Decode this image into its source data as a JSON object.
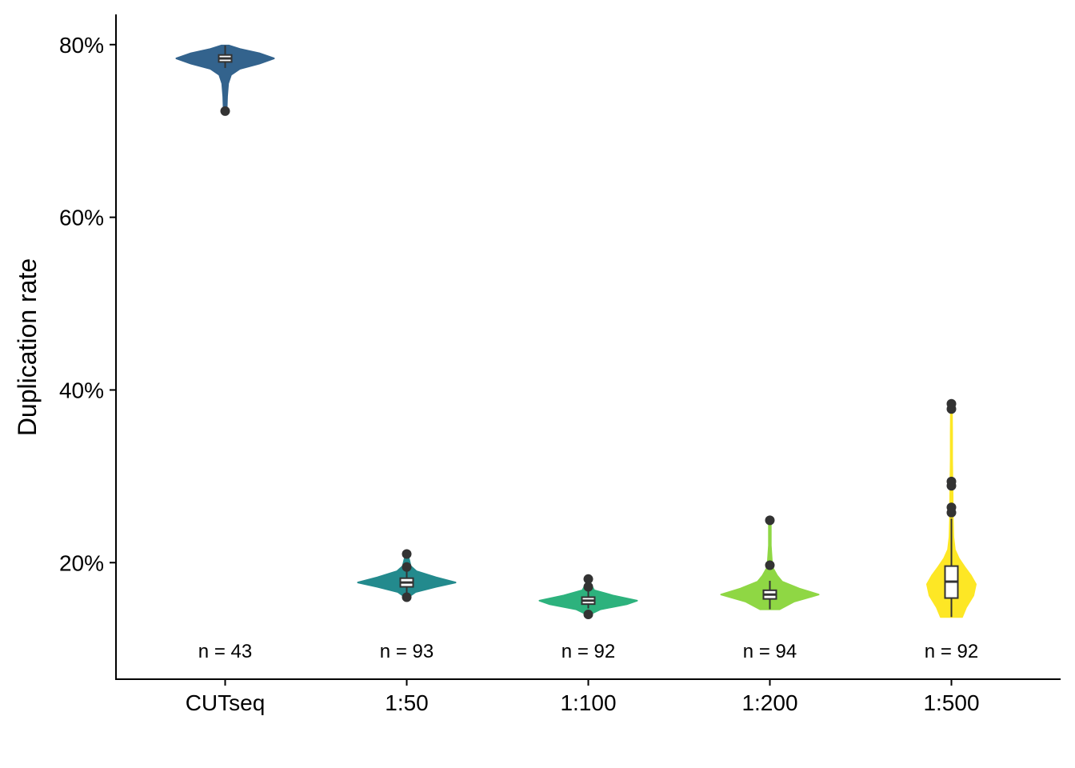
{
  "chart_data": {
    "type": "violin",
    "ylabel": "Duplication rate",
    "xlabel": "",
    "ylim": [
      6.5,
      83.5
    ],
    "y_ticks": [
      20,
      40,
      60,
      80
    ],
    "y_tick_labels": [
      "20%",
      "40%",
      "60%",
      "80%"
    ],
    "grid": false,
    "legend": "none",
    "groups": [
      {
        "label": "CUTseq",
        "n_label": "n = 43",
        "color": "#33638d",
        "box": {
          "q1": 78.0,
          "median": 78.4,
          "q3": 78.8,
          "whisker_low": 77.3,
          "whisker_high": 79.9
        },
        "outliers": [
          72.3
        ],
        "density": [
          [
            72.3,
            0.03
          ],
          [
            74.0,
            0.04
          ],
          [
            75.5,
            0.06
          ],
          [
            76.5,
            0.12
          ],
          [
            77.2,
            0.3
          ],
          [
            77.8,
            0.7
          ],
          [
            78.4,
            1.0
          ],
          [
            79.0,
            0.7
          ],
          [
            79.5,
            0.3
          ],
          [
            79.9,
            0.08
          ]
        ]
      },
      {
        "label": "1:50",
        "n_label": "n = 93",
        "color": "#238a8d",
        "box": {
          "q1": 17.2,
          "median": 17.7,
          "q3": 18.2,
          "whisker_low": 16.4,
          "whisker_high": 19.3
        },
        "outliers": [
          16.0,
          19.5,
          21.0
        ],
        "density": [
          [
            16.0,
            0.03
          ],
          [
            16.6,
            0.18
          ],
          [
            17.2,
            0.6
          ],
          [
            17.7,
            1.0
          ],
          [
            18.3,
            0.6
          ],
          [
            19.0,
            0.2
          ],
          [
            19.6,
            0.08
          ],
          [
            20.3,
            0.05
          ],
          [
            21.0,
            0.02
          ]
        ]
      },
      {
        "label": "1:100",
        "n_label": "n = 92",
        "color": "#2db27d",
        "box": {
          "q1": 15.2,
          "median": 15.6,
          "q3": 16.0,
          "whisker_low": 14.7,
          "whisker_high": 16.8
        },
        "outliers": [
          14.0,
          17.2,
          18.1
        ],
        "density": [
          [
            14.0,
            0.03
          ],
          [
            14.6,
            0.25
          ],
          [
            15.2,
            0.8
          ],
          [
            15.6,
            1.0
          ],
          [
            16.2,
            0.5
          ],
          [
            16.8,
            0.12
          ],
          [
            17.4,
            0.06
          ],
          [
            18.1,
            0.02
          ]
        ]
      },
      {
        "label": "1:200",
        "n_label": "n = 94",
        "color": "#8fd744",
        "box": {
          "q1": 15.8,
          "median": 16.3,
          "q3": 16.8,
          "whisker_low": 14.6,
          "whisker_high": 17.9
        },
        "outliers": [
          19.7,
          24.9
        ],
        "density": [
          [
            14.6,
            0.2
          ],
          [
            15.5,
            0.5
          ],
          [
            16.3,
            1.0
          ],
          [
            17.0,
            0.6
          ],
          [
            17.8,
            0.25
          ],
          [
            18.5,
            0.15
          ],
          [
            19.5,
            0.05
          ],
          [
            22.0,
            0.02
          ],
          [
            24.9,
            0.02
          ]
        ]
      },
      {
        "label": "1:500",
        "n_label": "n = 92",
        "color": "#fde725",
        "box": {
          "q1": 15.9,
          "median": 17.8,
          "q3": 19.6,
          "whisker_low": 13.7,
          "whisker_high": 25.1
        },
        "outliers": [
          25.8,
          26.4,
          28.9,
          29.4,
          37.8,
          38.4
        ],
        "density": [
          [
            13.7,
            0.22
          ],
          [
            14.8,
            0.3
          ],
          [
            16.2,
            0.45
          ],
          [
            17.5,
            0.5
          ],
          [
            18.5,
            0.4
          ],
          [
            19.5,
            0.27
          ],
          [
            20.5,
            0.15
          ],
          [
            21.5,
            0.07
          ],
          [
            23.0,
            0.04
          ],
          [
            25.0,
            0.03
          ],
          [
            28.0,
            0.025
          ],
          [
            32.0,
            0.015
          ],
          [
            35.0,
            0.015
          ],
          [
            38.4,
            0.01
          ]
        ]
      }
    ]
  }
}
